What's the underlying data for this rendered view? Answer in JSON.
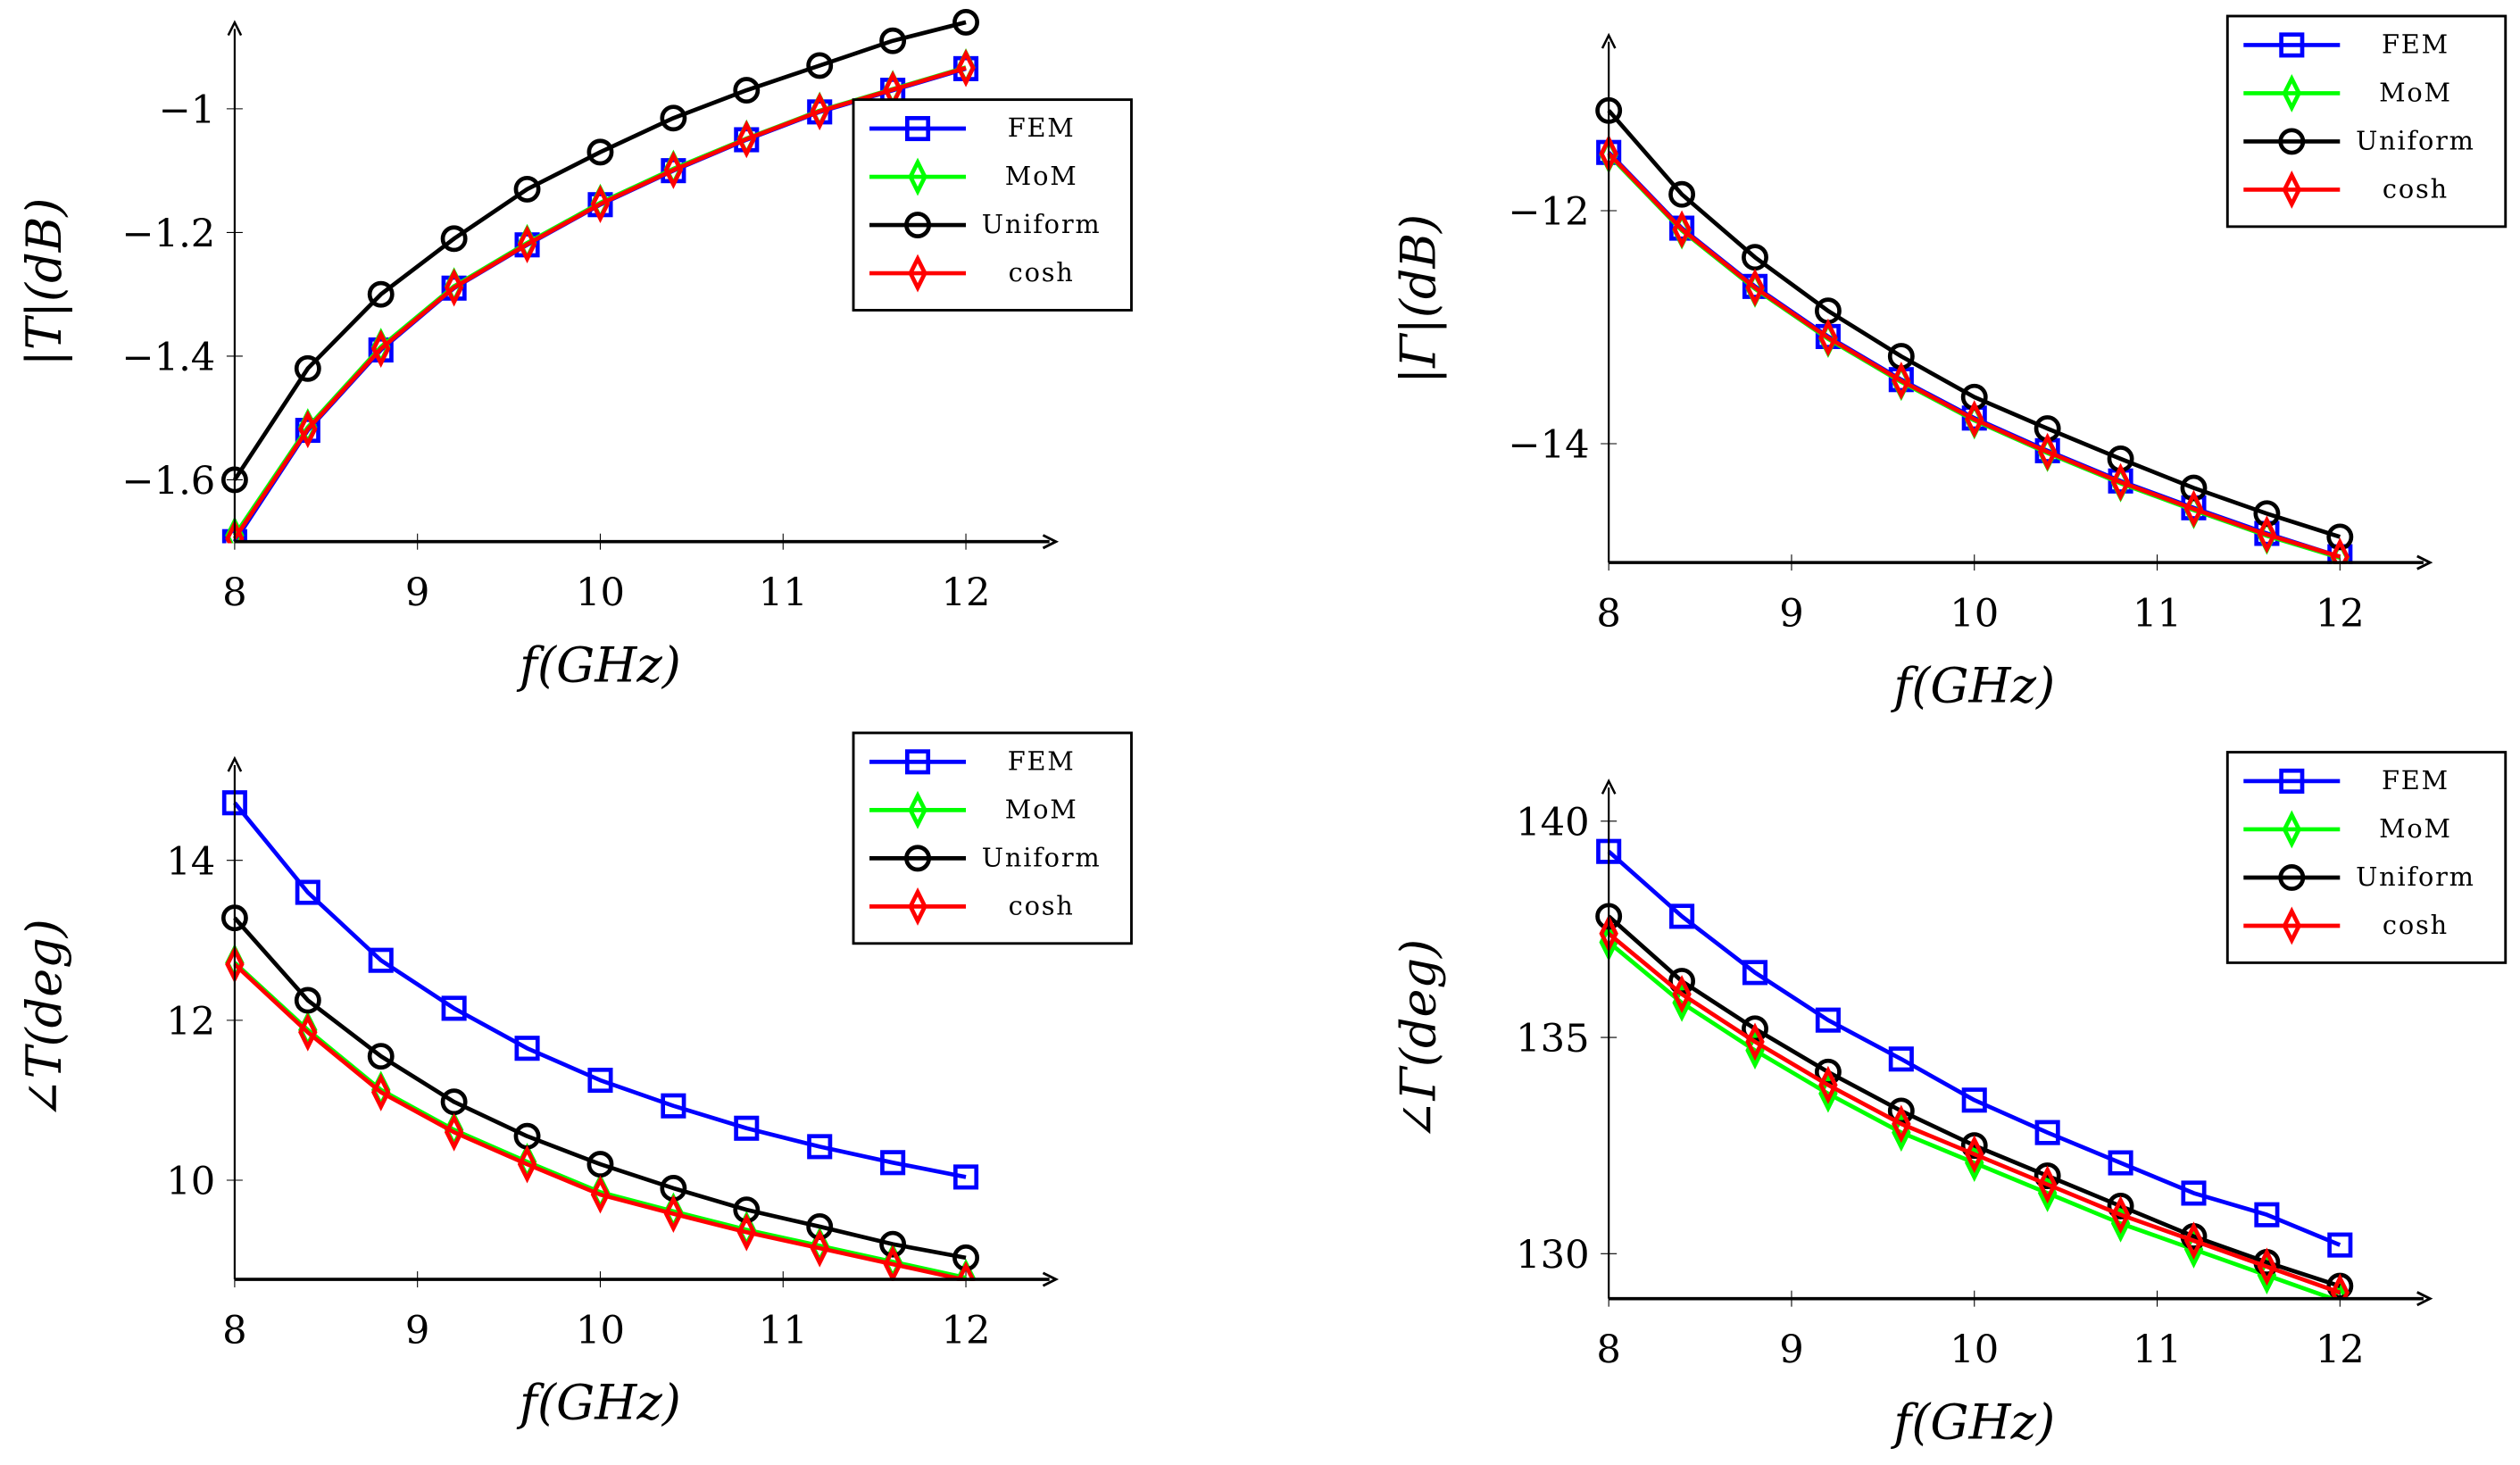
{
  "chart_data": [
    {
      "type": "line",
      "title": "",
      "xlabel": "f(GHz)",
      "ylabel": "|T|(dB)",
      "xlim": [
        8,
        12
      ],
      "ylim": [
        -1.7,
        -0.85
      ],
      "xticks": [
        "8",
        "9",
        "10",
        "11",
        "12"
      ],
      "yticks": [
        {
          "value": -1.6,
          "label": "−1.6"
        },
        {
          "value": -1.4,
          "label": "−1.4"
        },
        {
          "value": -1.2,
          "label": "−1.2"
        },
        {
          "value": -1,
          "label": "−1"
        }
      ],
      "legend": "top-right",
      "x": [
        8,
        8.4,
        8.8,
        9.2,
        9.6,
        10,
        10.4,
        10.8,
        11.2,
        11.6,
        12
      ],
      "series": [
        {
          "name": "FEM",
          "color": "#0000ff",
          "marker": "square",
          "values": [
            -1.7,
            -1.52,
            -1.39,
            -1.29,
            -1.22,
            -1.155,
            -1.1,
            -1.05,
            -1.005,
            -0.97,
            -0.935
          ]
        },
        {
          "name": "MoM",
          "color": "#00ff00",
          "marker": "diamond",
          "values": [
            -1.69,
            -1.515,
            -1.385,
            -1.287,
            -1.217,
            -1.152,
            -1.097,
            -1.048,
            -1.003,
            -0.968,
            -0.933
          ]
        },
        {
          "name": "Uniform",
          "color": "#000000",
          "marker": "circle",
          "values": [
            -1.6,
            -1.42,
            -1.3,
            -1.21,
            -1.13,
            -1.07,
            -1.015,
            -0.97,
            -0.93,
            -0.89,
            -0.86
          ]
        },
        {
          "name": "cosh",
          "color": "#ff0000",
          "marker": "diamond",
          "values": [
            -1.695,
            -1.518,
            -1.388,
            -1.289,
            -1.219,
            -1.154,
            -1.099,
            -1.049,
            -1.004,
            -0.969,
            -0.934
          ]
        }
      ]
    },
    {
      "type": "line",
      "title": "",
      "xlabel": "f(GHz)",
      "ylabel": "|Γ|(dB)",
      "xlim": [
        8,
        12
      ],
      "ylim": [
        -15.02,
        -11.0
      ],
      "xticks": [
        "8",
        "9",
        "10",
        "11",
        "12"
      ],
      "yticks": [
        {
          "value": -14,
          "label": "−14"
        },
        {
          "value": -12,
          "label": "−12"
        }
      ],
      "legend": "top-right",
      "x": [
        8,
        8.4,
        8.8,
        9.2,
        9.6,
        10,
        10.4,
        10.8,
        11.2,
        11.6,
        12
      ],
      "series": [
        {
          "name": "FEM",
          "color": "#0000ff",
          "marker": "square",
          "values": [
            -11.5,
            -12.15,
            -12.65,
            -13.08,
            -13.45,
            -13.78,
            -14.06,
            -14.32,
            -14.55,
            -14.77,
            -14.97
          ]
        },
        {
          "name": "MoM",
          "color": "#00ff00",
          "marker": "diamond",
          "values": [
            -11.52,
            -12.17,
            -12.67,
            -13.1,
            -13.47,
            -13.8,
            -14.08,
            -14.34,
            -14.57,
            -14.79,
            -14.98
          ]
        },
        {
          "name": "Uniform",
          "color": "#000000",
          "marker": "circle",
          "values": [
            -11.14,
            -11.86,
            -12.4,
            -12.86,
            -13.25,
            -13.6,
            -13.87,
            -14.13,
            -14.38,
            -14.6,
            -14.8
          ]
        },
        {
          "name": "cosh",
          "color": "#ff0000",
          "marker": "diamond",
          "values": [
            -11.51,
            -12.16,
            -12.66,
            -13.09,
            -13.46,
            -13.79,
            -14.07,
            -14.33,
            -14.56,
            -14.78,
            -14.97
          ]
        }
      ]
    },
    {
      "type": "line",
      "title": "",
      "xlabel": "f(GHz)",
      "ylabel": "∠T(deg)",
      "xlim": [
        8,
        12
      ],
      "ylim": [
        8.76,
        15.2
      ],
      "xticks": [
        "8",
        "9",
        "10",
        "11",
        "12"
      ],
      "yticks": [
        {
          "value": 10,
          "label": "10"
        },
        {
          "value": 12,
          "label": "12"
        },
        {
          "value": 14,
          "label": "14"
        }
      ],
      "legend": "top-right",
      "x": [
        8,
        8.4,
        8.8,
        9.2,
        9.6,
        10,
        10.4,
        10.8,
        11.2,
        11.6,
        12
      ],
      "series": [
        {
          "name": "FEM",
          "color": "#0000ff",
          "marker": "square",
          "values": [
            14.72,
            13.6,
            12.75,
            12.15,
            11.65,
            11.25,
            10.93,
            10.65,
            10.42,
            10.22,
            10.04
          ]
        },
        {
          "name": "MoM",
          "color": "#00ff00",
          "marker": "diamond",
          "values": [
            12.72,
            11.88,
            11.13,
            10.63,
            10.23,
            9.85,
            9.61,
            9.38,
            9.18,
            8.98,
            8.78
          ]
        },
        {
          "name": "Uniform",
          "color": "#000000",
          "marker": "circle",
          "values": [
            13.28,
            12.25,
            11.55,
            10.98,
            10.55,
            10.2,
            9.9,
            9.63,
            9.42,
            9.2,
            9.03
          ]
        },
        {
          "name": "cosh",
          "color": "#ff0000",
          "marker": "diamond",
          "values": [
            12.7,
            11.85,
            11.1,
            10.6,
            10.2,
            9.82,
            9.58,
            9.35,
            9.15,
            8.95,
            8.75
          ]
        }
      ]
    },
    {
      "type": "line",
      "title": "",
      "xlabel": "f(GHz)",
      "ylabel": "∠Γ(deg)",
      "xlim": [
        8,
        12
      ],
      "ylim": [
        128.96,
        141
      ],
      "xticks": [
        "8",
        "9",
        "10",
        "11",
        "12"
      ],
      "yticks": [
        {
          "value": 130,
          "label": "130"
        },
        {
          "value": 135,
          "label": "135"
        },
        {
          "value": 140,
          "label": "140"
        }
      ],
      "legend": "top-right",
      "x": [
        8,
        8.4,
        8.8,
        9.2,
        9.6,
        10,
        10.4,
        10.8,
        11.2,
        11.6,
        12
      ],
      "series": [
        {
          "name": "FEM",
          "color": "#0000ff",
          "marker": "square",
          "values": [
            139.3,
            137.8,
            136.5,
            135.4,
            134.5,
            133.55,
            132.8,
            132.1,
            131.4,
            130.9,
            130.2
          ]
        },
        {
          "name": "MoM",
          "color": "#00ff00",
          "marker": "diamond",
          "values": [
            137.2,
            135.8,
            134.7,
            133.7,
            132.8,
            132.1,
            131.4,
            130.7,
            130.1,
            129.5,
            128.9
          ]
        },
        {
          "name": "Uniform",
          "color": "#000000",
          "marker": "circle",
          "values": [
            137.8,
            136.3,
            135.2,
            134.2,
            133.3,
            132.5,
            131.8,
            131.1,
            130.4,
            129.8,
            129.25
          ]
        },
        {
          "name": "cosh",
          "color": "#ff0000",
          "marker": "diamond",
          "values": [
            137.4,
            136.0,
            134.9,
            133.9,
            133.0,
            132.3,
            131.6,
            130.9,
            130.3,
            129.7,
            129.1
          ]
        }
      ]
    }
  ]
}
